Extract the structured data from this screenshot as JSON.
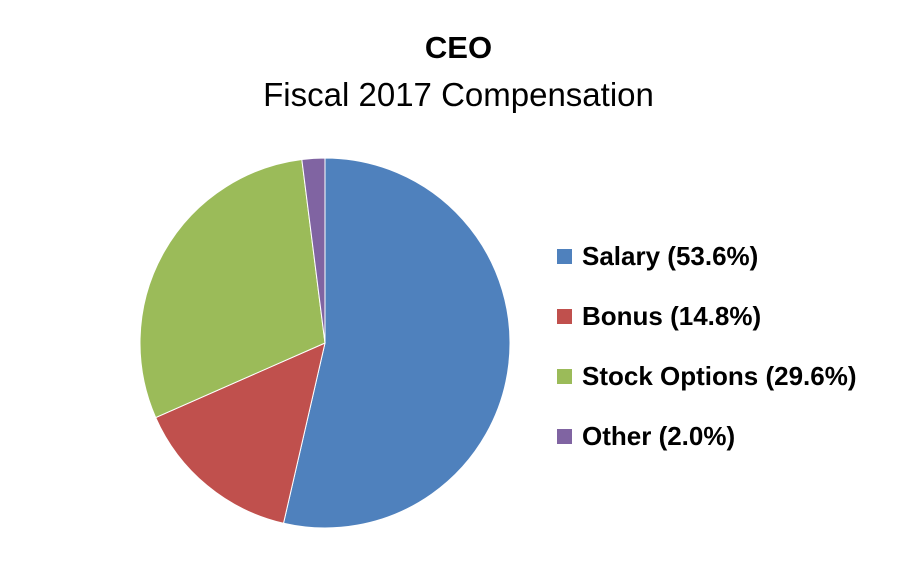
{
  "chart_data": {
    "type": "pie",
    "title": "CEO",
    "subtitle": "Fiscal 2017 Compensation",
    "categories": [
      "Salary",
      "Bonus",
      "Stock Options",
      "Other"
    ],
    "values": [
      53.6,
      14.8,
      29.6,
      2.0
    ],
    "legend_labels": [
      "Salary (53.6%)",
      "Bonus (14.8%)",
      "Stock Options (29.6%)",
      "Other (2.0%)"
    ],
    "colors": [
      "#4F81BD",
      "#C0504D",
      "#9BBB59",
      "#8064A2"
    ],
    "legend_position": "right"
  }
}
